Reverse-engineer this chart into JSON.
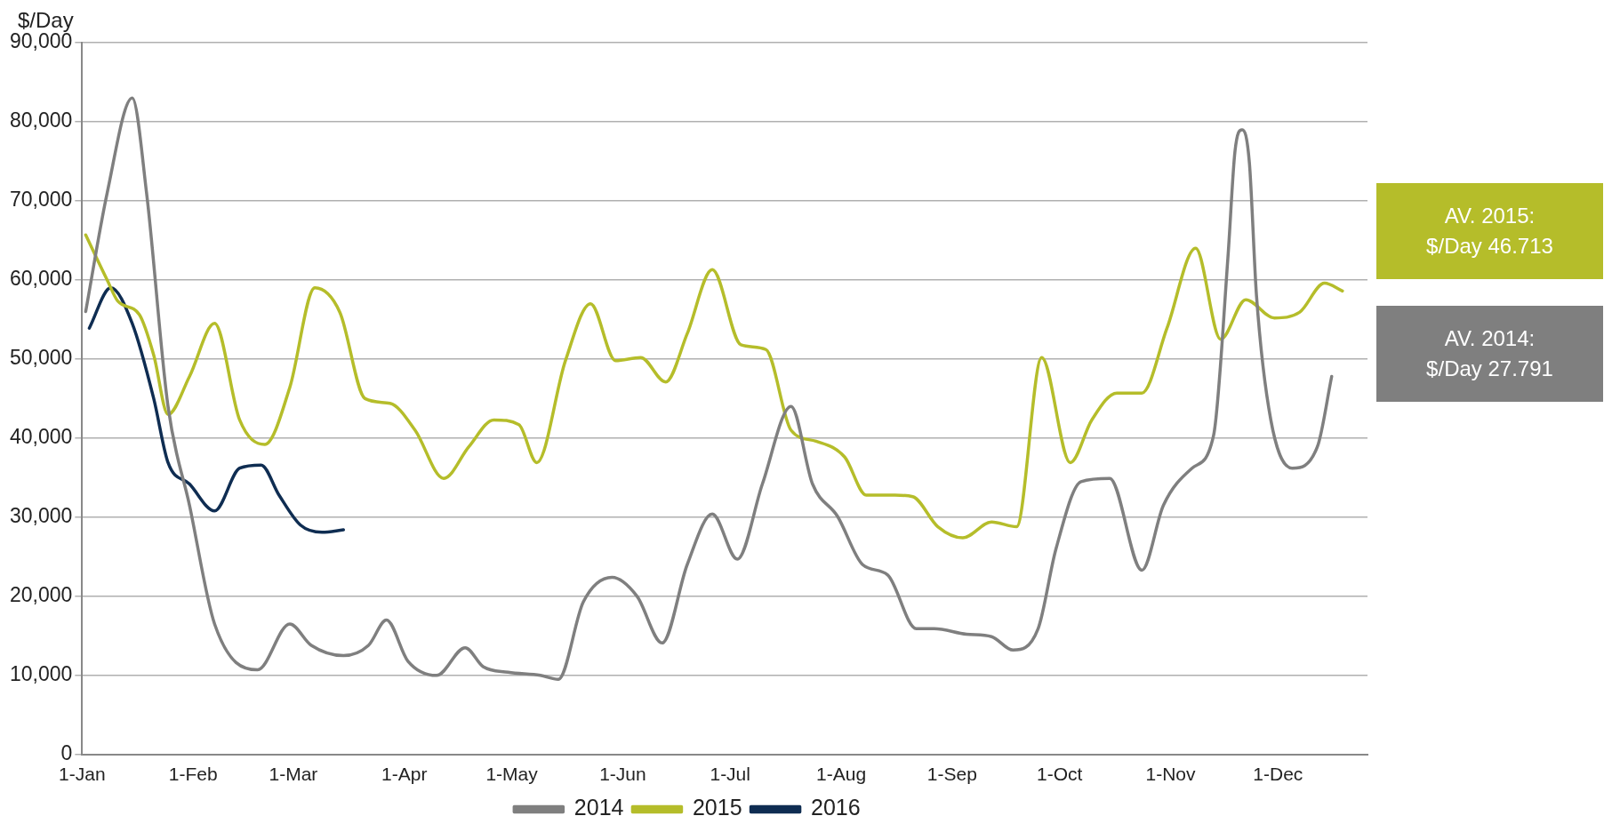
{
  "chart_data": {
    "type": "line",
    "ylabel": "$/Day",
    "xlim": [
      "--01-01",
      "--12-26"
    ],
    "xticks": [
      {
        "value": "--01-01",
        "label": "1-Jan"
      },
      {
        "value": "--02-01",
        "label": "1-Feb"
      },
      {
        "value": "--03-01",
        "label": "1-Mar"
      },
      {
        "value": "--04-01",
        "label": "1-Apr"
      },
      {
        "value": "--05-01",
        "label": "1-May"
      },
      {
        "value": "--06-01",
        "label": "1-Jun"
      },
      {
        "value": "--07-01",
        "label": "1-Jul"
      },
      {
        "value": "--08-01",
        "label": "1-Aug"
      },
      {
        "value": "--09-01",
        "label": "1-Sep"
      },
      {
        "value": "--10-01",
        "label": "1-Oct"
      },
      {
        "value": "--11-01",
        "label": "1-Nov"
      },
      {
        "value": "--12-01",
        "label": "1-Dec"
      }
    ],
    "ylim": [
      0,
      90000
    ],
    "yticks": [
      {
        "value": 0,
        "label": "0"
      },
      {
        "value": 10000,
        "label": "10,000"
      },
      {
        "value": 20000,
        "label": "20,000"
      },
      {
        "value": 30000,
        "label": "30,000"
      },
      {
        "value": 40000,
        "label": "40,000"
      },
      {
        "value": 50000,
        "label": "50,000"
      },
      {
        "value": 60000,
        "label": "60,000"
      },
      {
        "value": 70000,
        "label": "70,000"
      },
      {
        "value": 80000,
        "label": "80,000"
      },
      {
        "value": 90000,
        "label": "90,000"
      }
    ],
    "grid": "y",
    "legend": "bottom",
    "series": [
      {
        "name": "2014",
        "color": "#7f7f7f",
        "x": [
          "--01-02",
          "--01-08",
          "--01-15",
          "--01-19",
          "--01-25",
          "--01-31",
          "--02-07",
          "--02-19",
          "--02-28",
          "--03-06",
          "--03-15",
          "--03-22",
          "--03-27",
          "--04-02",
          "--04-10",
          "--04-18",
          "--04-23",
          "--04-30",
          "--05-09",
          "--05-14",
          "--05-21",
          "--05-29",
          "--06-05",
          "--06-12",
          "--06-19",
          "--06-26",
          "--07-03",
          "--07-10",
          "--07-18",
          "--07-24",
          "--07-31",
          "--08-07",
          "--08-14",
          "--08-22",
          "--08-27",
          "--09-05",
          "--09-12",
          "--09-18",
          "--09-25",
          "--09-30",
          "--10-07",
          "--10-15",
          "--10-24",
          "--10-30",
          "--11-07",
          "--11-13",
          "--11-17",
          "--11-19",
          "--11-21",
          "--11-23",
          "--11-25",
          "--11-29",
          "--12-05",
          "--12-12",
          "--12-16"
        ],
        "values": [
          56000,
          71000,
          83000,
          71000,
          44000,
          31500,
          16500,
          10700,
          16500,
          13800,
          12500,
          13800,
          17000,
          11800,
          10000,
          13500,
          11100,
          10400,
          10000,
          9500,
          19300,
          22400,
          20000,
          14100,
          24000,
          30400,
          24700,
          34200,
          44000,
          34200,
          30100,
          24000,
          22700,
          15900,
          15900,
          15200,
          14900,
          13200,
          15900,
          26000,
          34500,
          34900,
          23300,
          31500,
          36200,
          40300,
          62700,
          76300,
          79000,
          74900,
          58000,
          42300,
          36200,
          38900,
          47800
        ]
      },
      {
        "name": "2015",
        "color": "#b5bd2a",
        "x": [
          "--01-02",
          "--01-08",
          "--01-11",
          "--01-17",
          "--01-21",
          "--01-25",
          "--01-31",
          "--02-07",
          "--02-14",
          "--02-21",
          "--02-28",
          "--03-07",
          "--03-14",
          "--03-21",
          "--03-28",
          "--04-04",
          "--04-12",
          "--04-19",
          "--04-26",
          "--05-03",
          "--05-08",
          "--05-16",
          "--05-23",
          "--05-30",
          "--06-06",
          "--06-13",
          "--06-19",
          "--06-26",
          "--07-04",
          "--07-11",
          "--07-18",
          "--07-25",
          "--08-02",
          "--08-08",
          "--08-16",
          "--08-21",
          "--08-28",
          "--09-04",
          "--09-12",
          "--09-19",
          "--09-26",
          "--10-04",
          "--10-10",
          "--10-17",
          "--10-24",
          "--10-31",
          "--11-08",
          "--11-15",
          "--11-22",
          "--11-30",
          "--12-07",
          "--12-14",
          "--12-19"
        ],
        "values": [
          65700,
          60000,
          57300,
          55600,
          50500,
          43000,
          47800,
          54500,
          42300,
          39200,
          46400,
          59000,
          55900,
          45000,
          44400,
          41000,
          34900,
          38900,
          42300,
          41700,
          36900,
          49800,
          57000,
          49800,
          50200,
          47100,
          53200,
          61300,
          51800,
          51200,
          41000,
          39600,
          37600,
          32800,
          32800,
          32600,
          28800,
          27400,
          29400,
          28800,
          50200,
          36900,
          42300,
          45700,
          45700,
          53900,
          64000,
          52500,
          57500,
          55200,
          55900,
          59600,
          58600
        ]
      },
      {
        "name": "2016",
        "color": "#0f2d52",
        "x": [
          "--01-03",
          "--01-09",
          "--01-15",
          "--01-21",
          "--01-25",
          "--01-31",
          "--02-07",
          "--02-14",
          "--02-20",
          "--02-25",
          "--03-03",
          "--03-09",
          "--03-15"
        ],
        "values": [
          53900,
          59000,
          54500,
          45000,
          36900,
          34200,
          30800,
          36200,
          36600,
          32800,
          29000,
          28100,
          28400
        ]
      }
    ],
    "annotations": [
      "AV. 2015: $/Day 46.713",
      "AV. 2014: $/Day 27.791"
    ]
  }
}
